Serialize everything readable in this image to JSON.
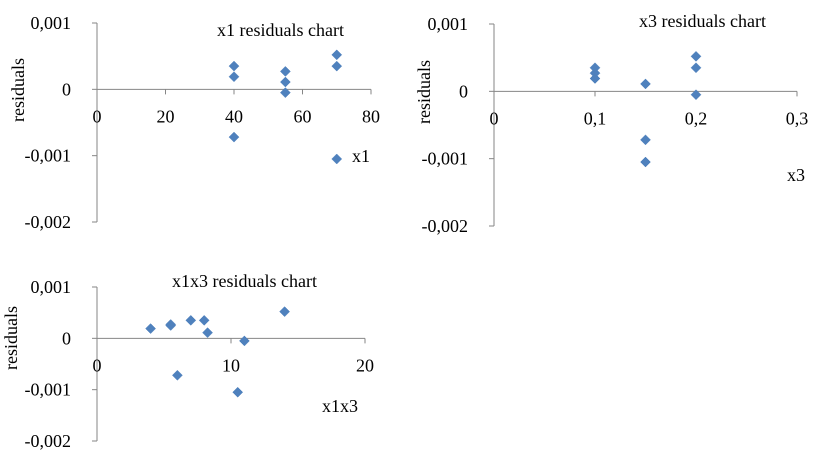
{
  "chart_data": [
    {
      "type": "scatter",
      "title": "x1 residuals chart",
      "xlabel": "x1",
      "ylabel": "residuals",
      "xlim": [
        0,
        80
      ],
      "ylim": [
        -0.002,
        0.001
      ],
      "x_ticks": [
        "0",
        "20",
        "40",
        "60",
        "80"
      ],
      "y_ticks": [
        "0,001",
        "0",
        "-0,001",
        "-0,002"
      ],
      "marker_color": "#4f81bd",
      "points": [
        {
          "x": 40,
          "y": 0.00035
        },
        {
          "x": 40,
          "y": 0.00019
        },
        {
          "x": 40,
          "y": -0.00072
        },
        {
          "x": 55,
          "y": 0.00027
        },
        {
          "x": 55,
          "y": 0.00011
        },
        {
          "x": 55,
          "y": -5e-05
        },
        {
          "x": 70,
          "y": 0.00052
        },
        {
          "x": 70,
          "y": 0.00035
        },
        {
          "x": 70,
          "y": -0.00105
        }
      ]
    },
    {
      "type": "scatter",
      "title": "x3 residuals chart",
      "xlabel": "x3",
      "ylabel": "residuals",
      "xlim": [
        0,
        0.3
      ],
      "ylim": [
        -0.002,
        0.001
      ],
      "x_ticks": [
        "0",
        "0,1",
        "0,2",
        "0,3"
      ],
      "y_ticks": [
        "0,001",
        "0",
        "-0,001",
        "-0,002"
      ],
      "marker_color": "#4f81bd",
      "points": [
        {
          "x": 0.1,
          "y": 0.00035
        },
        {
          "x": 0.1,
          "y": 0.00027
        },
        {
          "x": 0.1,
          "y": 0.00019
        },
        {
          "x": 0.15,
          "y": 0.00011
        },
        {
          "x": 0.15,
          "y": -0.00072
        },
        {
          "x": 0.15,
          "y": -0.00105
        },
        {
          "x": 0.2,
          "y": 0.00052
        },
        {
          "x": 0.2,
          "y": 0.00035
        },
        {
          "x": 0.2,
          "y": -5e-05
        }
      ]
    },
    {
      "type": "scatter",
      "title": "x1x3 residuals chart",
      "xlabel": "x1x3",
      "ylabel": "residuals",
      "xlim": [
        0,
        20
      ],
      "ylim": [
        -0.002,
        0.001
      ],
      "x_ticks": [
        "0",
        "10",
        "20"
      ],
      "y_ticks": [
        "0,001",
        "0",
        "-0,001",
        "-0,002"
      ],
      "marker_color": "#4f81bd",
      "points": [
        {
          "x": 4,
          "y": 0.00019
        },
        {
          "x": 5.5,
          "y": 0.00027
        },
        {
          "x": 5.5,
          "y": 0.00025
        },
        {
          "x": 7,
          "y": 0.00035
        },
        {
          "x": 8,
          "y": 0.00035
        },
        {
          "x": 8.25,
          "y": 0.00011
        },
        {
          "x": 11,
          "y": -5e-05
        },
        {
          "x": 14,
          "y": 0.00052
        },
        {
          "x": 6,
          "y": -0.00072
        },
        {
          "x": 10.5,
          "y": -0.00105
        }
      ]
    }
  ]
}
